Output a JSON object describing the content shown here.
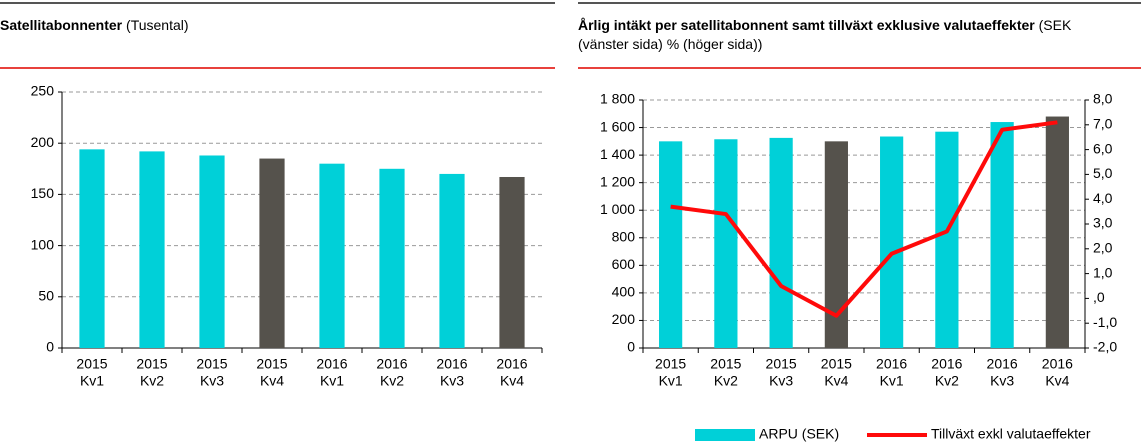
{
  "chart_data": [
    {
      "type": "bar",
      "title": "Satellitabonnenter",
      "subtitle": "(Tusental)",
      "categories": [
        [
          "2015",
          "Kv1"
        ],
        [
          "2015",
          "Kv2"
        ],
        [
          "2015",
          "Kv3"
        ],
        [
          "2015",
          "Kv4"
        ],
        [
          "2016",
          "Kv1"
        ],
        [
          "2016",
          "Kv2"
        ],
        [
          "2016",
          "Kv3"
        ],
        [
          "2016",
          "Kv4"
        ]
      ],
      "series": [
        {
          "name": null,
          "colors": [
            "#00d0d8",
            "#00d0d8",
            "#00d0d8",
            "#55524c",
            "#00d0d8",
            "#00d0d8",
            "#00d0d8",
            "#55524c"
          ],
          "values": [
            194,
            192,
            188,
            185,
            180,
            175,
            170,
            167
          ]
        }
      ],
      "ylim": [
        0,
        250
      ],
      "yticks": [
        0,
        50,
        100,
        150,
        200,
        250
      ],
      "grid": true
    },
    {
      "type": "bar_line",
      "title": "Årlig intäkt per satellitabonnent samt tillväxt exklusive valutaeffekter",
      "subtitle": "(SEK (vänster sida) % (höger sida))",
      "categories": [
        [
          "2015",
          "Kv1"
        ],
        [
          "2015",
          "Kv2"
        ],
        [
          "2015",
          "Kv3"
        ],
        [
          "2015",
          "Kv4"
        ],
        [
          "2016",
          "Kv1"
        ],
        [
          "2016",
          "Kv2"
        ],
        [
          "2016",
          "Kv3"
        ],
        [
          "2016",
          "Kv4"
        ]
      ],
      "series": [
        {
          "name": "ARPU (SEK)",
          "type": "bar",
          "color": "#00d0d8",
          "colors": [
            "#00d0d8",
            "#00d0d8",
            "#00d0d8",
            "#55524c",
            "#00d0d8",
            "#00d0d8",
            "#00d0d8",
            "#55524c"
          ],
          "values": [
            1500,
            1515,
            1525,
            1500,
            1535,
            1570,
            1640,
            1680
          ]
        },
        {
          "name": "Tillväxt exkl valutaeffekter",
          "type": "line",
          "axis": "y2",
          "color": "#ff0a0a",
          "values": [
            3.7,
            3.4,
            0.5,
            -0.7,
            1.8,
            2.7,
            6.8,
            7.1
          ]
        }
      ],
      "ylim": [
        0,
        1800
      ],
      "yticks": [
        0,
        200,
        400,
        600,
        800,
        {
          "value": 1000,
          "label": "1 000"
        },
        {
          "value": 1200,
          "label": "1 200"
        },
        {
          "value": 1400,
          "label": "1 400"
        },
        {
          "value": 1600,
          "label": "1 600"
        },
        {
          "value": 1800,
          "label": "1 800"
        }
      ],
      "y2lim": [
        -2,
        8
      ],
      "y2ticks": [
        {
          "value": -2,
          "label": "-2,0"
        },
        {
          "value": -1,
          "label": "-1,0"
        },
        {
          "value": 0,
          "label": ",0"
        },
        {
          "value": 1,
          "label": "1,0"
        },
        {
          "value": 2,
          "label": "2,0"
        },
        {
          "value": 3,
          "label": "3,0"
        },
        {
          "value": 4,
          "label": "4,0"
        },
        {
          "value": 5,
          "label": "5,0"
        },
        {
          "value": 6,
          "label": "6,0"
        },
        {
          "value": 7,
          "label": "7,0"
        },
        {
          "value": 8,
          "label": "8,0"
        }
      ],
      "grid": true,
      "legend": "bottom-right"
    }
  ]
}
